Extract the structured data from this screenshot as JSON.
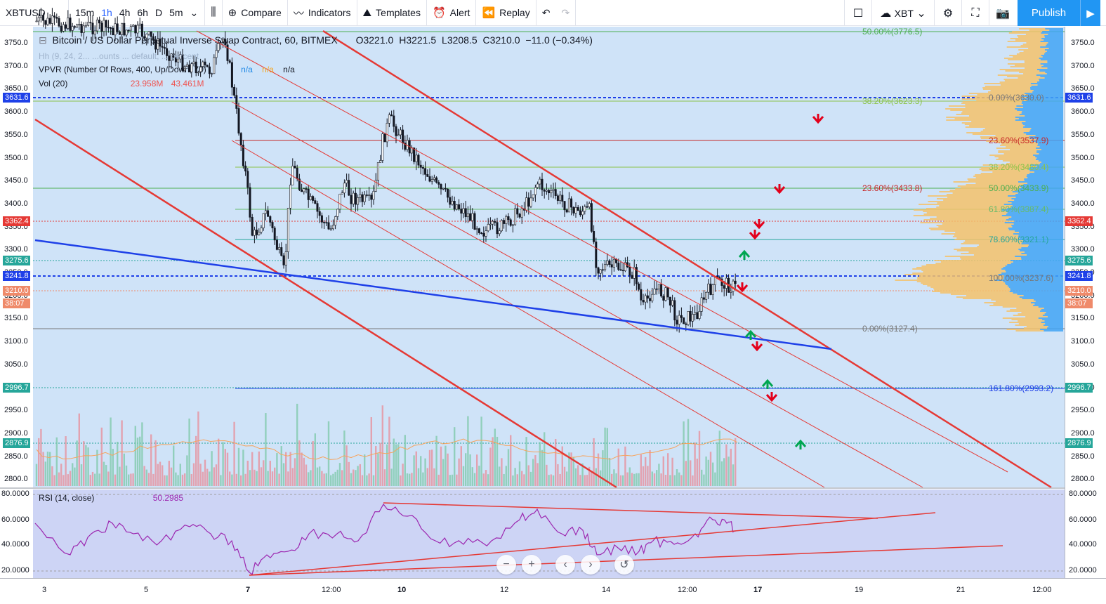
{
  "toolbar": {
    "symbol": "XBTUSD",
    "intervals": [
      "15m",
      "1h",
      "4h",
      "6h",
      "D",
      "5m"
    ],
    "active_interval": "1h",
    "compare": "Compare",
    "indicators": "Indicators",
    "templates": "Templates",
    "alert": "Alert",
    "replay": "Replay",
    "currency": "XBT",
    "publish": "Publish"
  },
  "legend": {
    "title": "Bitcoin / US Dollar Perpetual Inverse Swap Contract, 60, BITMEX",
    "o_label": "O",
    "o": "3221.0",
    "h_label": "H",
    "h": "3221.5",
    "l_label": "L",
    "l": "3208.5",
    "c_label": "C",
    "c": "3210.0",
    "change": "−11.0 (−0.34%)",
    "vpvr": "VPVR (Number Of Rows, 400, Up/Down, 70)",
    "vpvr_vals": [
      "n/a",
      "n/a",
      "n/a"
    ],
    "vol": "Vol (20)",
    "vol_vals": [
      "23.958M",
      "43.461M"
    ],
    "hidden_line": "Hh (9, 24, 2...  ...ounts ... default, ... percent"
  },
  "rsi": {
    "title": "RSI (14, close)",
    "value": "50.2985",
    "axis": [
      "80.0000",
      "60.0000",
      "40.0000",
      "20.0000"
    ]
  },
  "price_axis": [
    "3750.0",
    "3700.0",
    "3650.0",
    "3600.0",
    "3550.0",
    "3500.0",
    "3450.0",
    "3400.0",
    "3350.0",
    "3300.0",
    "3250.0",
    "3200.0",
    "3150.0",
    "3100.0",
    "3050.0",
    "3000.0",
    "2950.0",
    "2900.0",
    "2850.0",
    "2800.0"
  ],
  "price_tags": [
    {
      "text": "3631.6",
      "color": "#1e40e8"
    },
    {
      "text": "3362.4",
      "color": "#e53935"
    },
    {
      "text": "3275.6",
      "color": "#26a69a"
    },
    {
      "text": "3241.8",
      "color": "#1e40e8"
    },
    {
      "text": "3210.0",
      "color": "#ef8a6a"
    },
    {
      "text": "38:07",
      "color": "#ef8a6a"
    },
    {
      "text": "2996.7",
      "color": "#26a69a"
    },
    {
      "text": "2876.9",
      "color": "#26a69a"
    }
  ],
  "time_axis": [
    "3",
    "5",
    "7",
    "12:00",
    "10",
    "12",
    "14",
    "12:00",
    "17",
    "19",
    "21",
    "12:00"
  ],
  "fib_labels": {
    "top": [
      "50.00%(3776.5)",
      "38.20%(3623.3)",
      "23.60%(3433.8)",
      "0.00%(3127.4)"
    ],
    "right": [
      "0.00%(3630.0)",
      "23.60%(3537.9)",
      "38.20%(3480.4)",
      "50.00%(3433.9)",
      "61.80%(3387.4)",
      "78.60%(3321.1)",
      "100.00%(3237.6)",
      "161.80%(2993.2)"
    ]
  },
  "colors": {
    "up": "#26a69a",
    "down": "#ef5350",
    "channel": "#e53935",
    "trendline": "#1e40e8",
    "rsi": "#9c27b0",
    "publish": "#2196f3"
  }
}
